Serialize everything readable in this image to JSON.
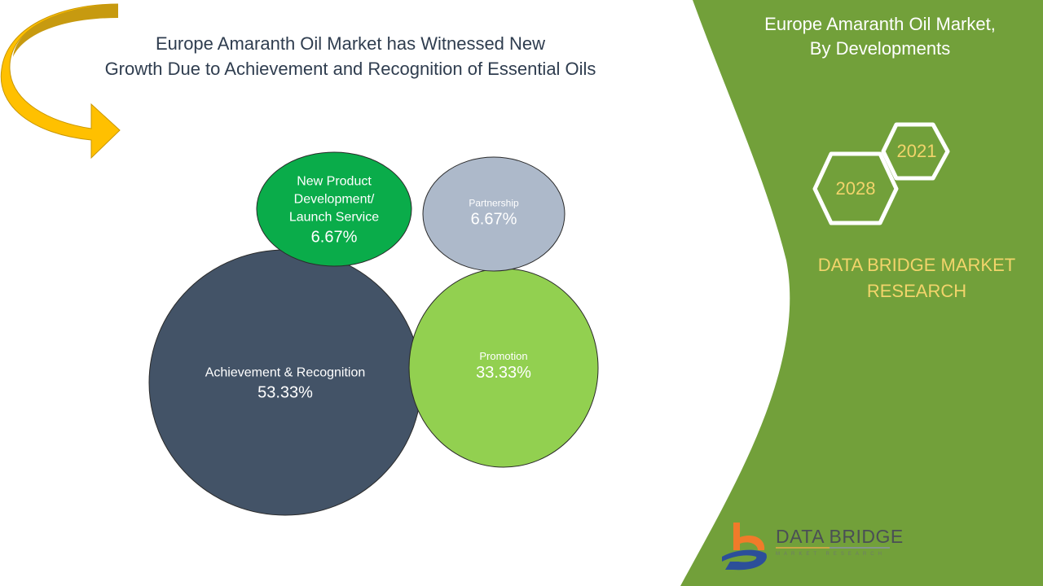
{
  "header": {
    "title_line1": "Europe Amaranth Oil Market has Witnessed New",
    "title_line2": "Growth Due to Achievement and Recognition of Essential Oils"
  },
  "side_panel": {
    "title_line1": "Europe Amaranth Oil Market,",
    "title_line2": "By Developments",
    "year_start": "2021",
    "year_end": "2028",
    "brand_line1": "DATA BRIDGE MARKET",
    "brand_line2": "RESEARCH",
    "logo_text": "DATA BRIDGE",
    "logo_sub": "MARKET RESEARCH"
  },
  "colors": {
    "panel_green": "#72a03a",
    "accent_yellow": "#f2d46b",
    "arrow_yellow": "#ffc000"
  },
  "chart_data": {
    "type": "bubble",
    "series": [
      {
        "name": "Achievement & Recognition",
        "value": 53.33,
        "label": "53.33%",
        "color": "#435367"
      },
      {
        "name": "Promotion",
        "value": 33.33,
        "label": "33.33%",
        "color": "#92d050"
      },
      {
        "name": "New Product Development/ Launch Service",
        "value": 6.67,
        "label": "6.67%",
        "color": "#0aac4a"
      },
      {
        "name": "Partnership",
        "value": 6.67,
        "label": "6.67%",
        "color": "#adb9ca"
      }
    ]
  }
}
